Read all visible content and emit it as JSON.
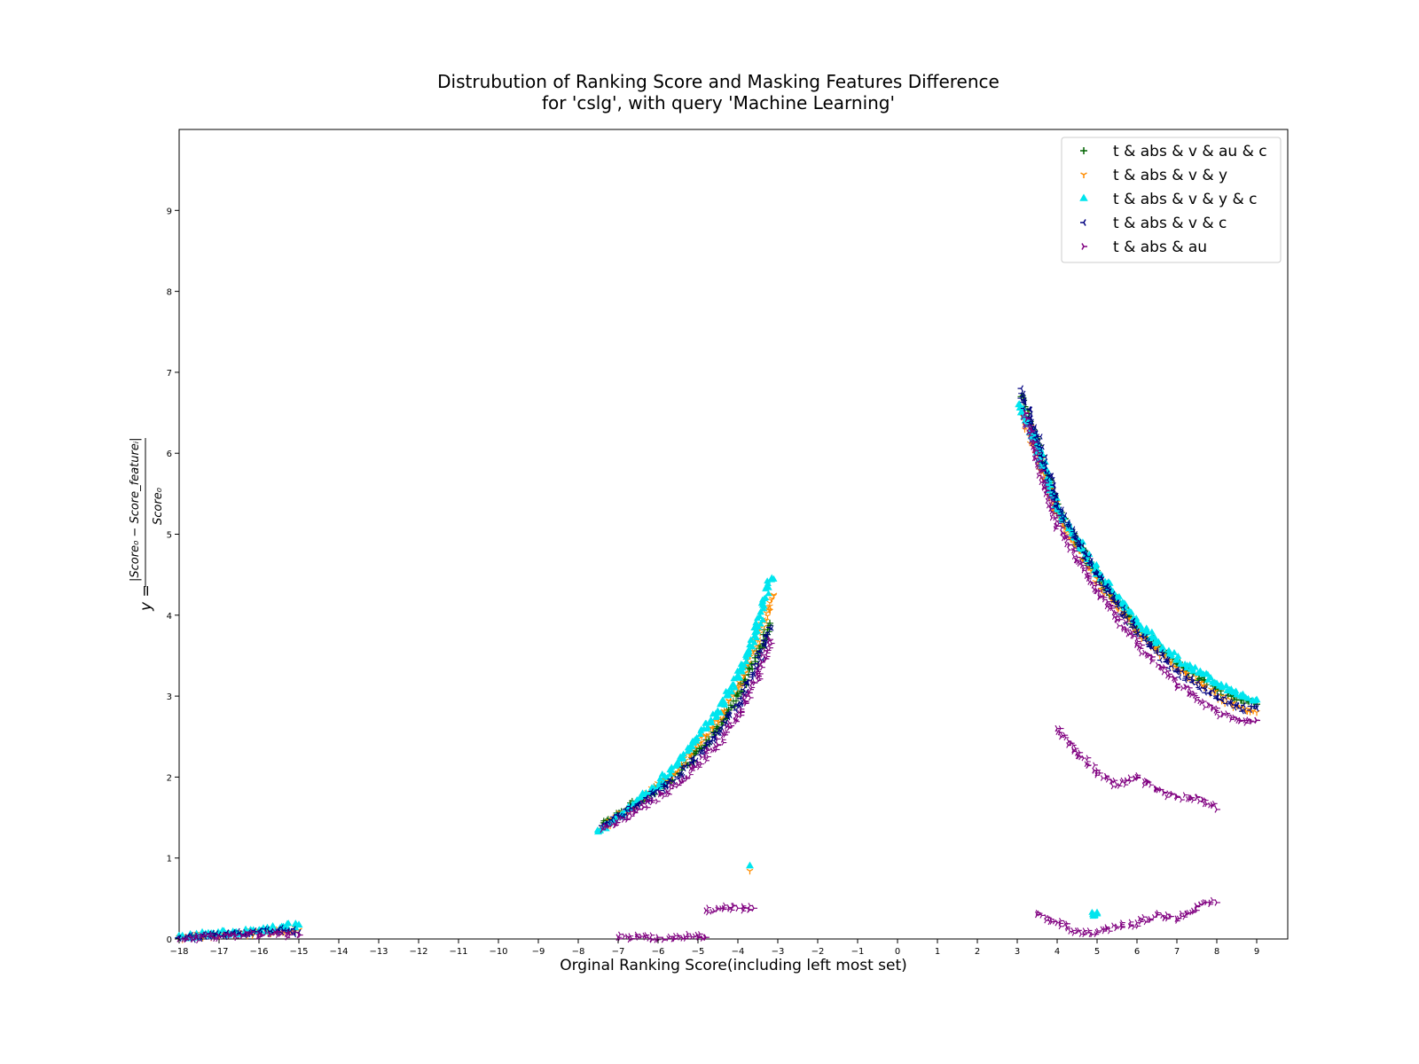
{
  "chart_data": {
    "type": "scatter",
    "title_line1": "Distrubution of Ranking Score and Masking Features Difference",
    "title_line2": "for 'cslg', with query 'Machine Learning'",
    "xlabel": "Orginal Ranking Score(including left most set)",
    "ylabel": "y = |Score_0 - Score_feature_i| / Score_0",
    "xlim": [
      -18,
      10
    ],
    "ylim": [
      0,
      10
    ],
    "xticks": [
      "−18",
      "−17",
      "−16",
      "−15",
      "−14",
      "−13",
      "−12",
      "−11",
      "−10",
      "−9",
      "−8",
      "−7",
      "−6",
      "−5",
      "−4",
      "−3",
      "−2",
      "−1",
      "0",
      "1",
      "2",
      "3",
      "4",
      "5",
      "6",
      "7",
      "8",
      "9"
    ],
    "yticks": [
      "0",
      "1",
      "2",
      "3",
      "4",
      "5",
      "6",
      "7",
      "8",
      "9"
    ],
    "grid": false,
    "legend_position": "top-right",
    "series": [
      {
        "name": "t & abs & v & au & c",
        "marker": "plus",
        "color": "#006400",
        "clusters": [
          {
            "x": [
              -7.4,
              -6.5,
              -5.5,
              -4.5,
              -4.0,
              -3.5,
              -3.2
            ],
            "y": [
              1.4,
              1.7,
              2.05,
              2.6,
              3.0,
              3.5,
              3.9
            ]
          },
          {
            "x": [
              3.1,
              3.5,
              4.0,
              5.0,
              6.0,
              7.0,
              8.0,
              8.6,
              9.0
            ],
            "y": [
              6.7,
              6.1,
              5.3,
              4.5,
              3.85,
              3.4,
              3.1,
              2.95,
              2.9
            ]
          }
        ]
      },
      {
        "name": "t & abs & v & y",
        "marker": "tri_down",
        "color": "#ff8c00",
        "clusters": [
          {
            "x": [
              -18.0,
              -17.0,
              -16.0,
              -15.0
            ],
            "y": [
              0.02,
              0.05,
              0.08,
              0.11
            ]
          },
          {
            "x": [
              -7.4,
              -6.5,
              -5.5,
              -4.5,
              -4.0,
              -3.5,
              -3.1
            ],
            "y": [
              1.35,
              1.7,
              2.1,
              2.7,
              3.1,
              3.7,
              4.25
            ]
          },
          {
            "x": [
              -3.7
            ],
            "y": [
              0.84
            ]
          },
          {
            "x": [
              3.1,
              3.5,
              4.0,
              5.0,
              6.0,
              7.0,
              8.0,
              8.6,
              9.0
            ],
            "y": [
              6.55,
              6.0,
              5.25,
              4.45,
              3.8,
              3.35,
              3.0,
              2.85,
              2.8
            ]
          }
        ]
      },
      {
        "name": "t & abs & v & y & c",
        "marker": "triangle_up",
        "color": "#00e5ee",
        "clusters": [
          {
            "x": [
              -18.0,
              -17.0,
              -16.0,
              -15.0
            ],
            "y": [
              0.03,
              0.06,
              0.1,
              0.17
            ]
          },
          {
            "x": [
              -7.5,
              -6.5,
              -5.5,
              -4.5,
              -4.0,
              -3.5,
              -3.15
            ],
            "y": [
              1.32,
              1.7,
              2.15,
              2.8,
              3.25,
              3.85,
              4.45
            ]
          },
          {
            "x": [
              -3.7
            ],
            "y": [
              0.9
            ]
          },
          {
            "x": [
              4.9,
              5.0
            ],
            "y": [
              0.3,
              0.32
            ]
          },
          {
            "x": [
              3.05,
              3.5,
              4.0,
              5.0,
              6.0,
              7.0,
              8.0,
              8.6,
              9.0
            ],
            "y": [
              6.6,
              6.1,
              5.3,
              4.55,
              3.9,
              3.45,
              3.15,
              3.0,
              2.95
            ]
          }
        ]
      },
      {
        "name": "t & abs & v & c",
        "marker": "tri_left",
        "color": "#000080",
        "clusters": [
          {
            "x": [
              -18.0,
              -17.0,
              -16.0,
              -15.5,
              -15.0
            ],
            "y": [
              0.01,
              0.05,
              0.09,
              0.12,
              0.08
            ]
          },
          {
            "x": [
              -7.4,
              -6.5,
              -5.5,
              -4.5,
              -4.0,
              -3.5,
              -3.2
            ],
            "y": [
              1.4,
              1.65,
              2.0,
              2.55,
              2.9,
              3.4,
              3.85
            ]
          },
          {
            "x": [
              3.1,
              3.5,
              4.0,
              5.0,
              6.0,
              7.0,
              8.0,
              8.6,
              9.0
            ],
            "y": [
              6.8,
              6.2,
              5.35,
              4.5,
              3.8,
              3.3,
              3.0,
              2.85,
              2.85
            ]
          }
        ]
      },
      {
        "name": "t & abs & au",
        "marker": "tri_right",
        "color": "#800080",
        "clusters": [
          {
            "x": [
              -18.0,
              -17.0,
              -16.0,
              -15.0
            ],
            "y": [
              0.0,
              0.03,
              0.06,
              0.05
            ]
          },
          {
            "x": [
              -7.0,
              -6.0,
              -5.0,
              -4.8
            ],
            "y": [
              0.02,
              0.02,
              0.03,
              0.02
            ]
          },
          {
            "x": [
              -4.8,
              -4.5,
              -4.0,
              -3.6
            ],
            "y": [
              0.35,
              0.38,
              0.38,
              0.38
            ]
          },
          {
            "x": [
              -7.4,
              -6.5,
              -5.5,
              -4.5,
              -4.0,
              -3.5,
              -3.2
            ],
            "y": [
              1.35,
              1.6,
              1.9,
              2.4,
              2.75,
              3.25,
              3.7
            ]
          },
          {
            "x": [
              3.2,
              3.5,
              4.0,
              5.0,
              6.0,
              7.0,
              8.0,
              8.6,
              9.0
            ],
            "y": [
              6.5,
              5.9,
              5.1,
              4.3,
              3.65,
              3.15,
              2.8,
              2.7,
              2.7
            ]
          },
          {
            "x": [
              4.0,
              4.5,
              5.0,
              5.5,
              6.0,
              6.5,
              7.0,
              7.5,
              8.0
            ],
            "y": [
              2.6,
              2.3,
              2.05,
              1.9,
              2.0,
              1.85,
              1.75,
              1.75,
              1.6
            ]
          },
          {
            "x": [
              3.5,
              4.0,
              4.5,
              5.0,
              5.5,
              6.0,
              6.5,
              7.0,
              7.5,
              8.0
            ],
            "y": [
              0.3,
              0.2,
              0.1,
              0.08,
              0.15,
              0.2,
              0.3,
              0.25,
              0.4,
              0.45
            ]
          }
        ]
      }
    ]
  }
}
